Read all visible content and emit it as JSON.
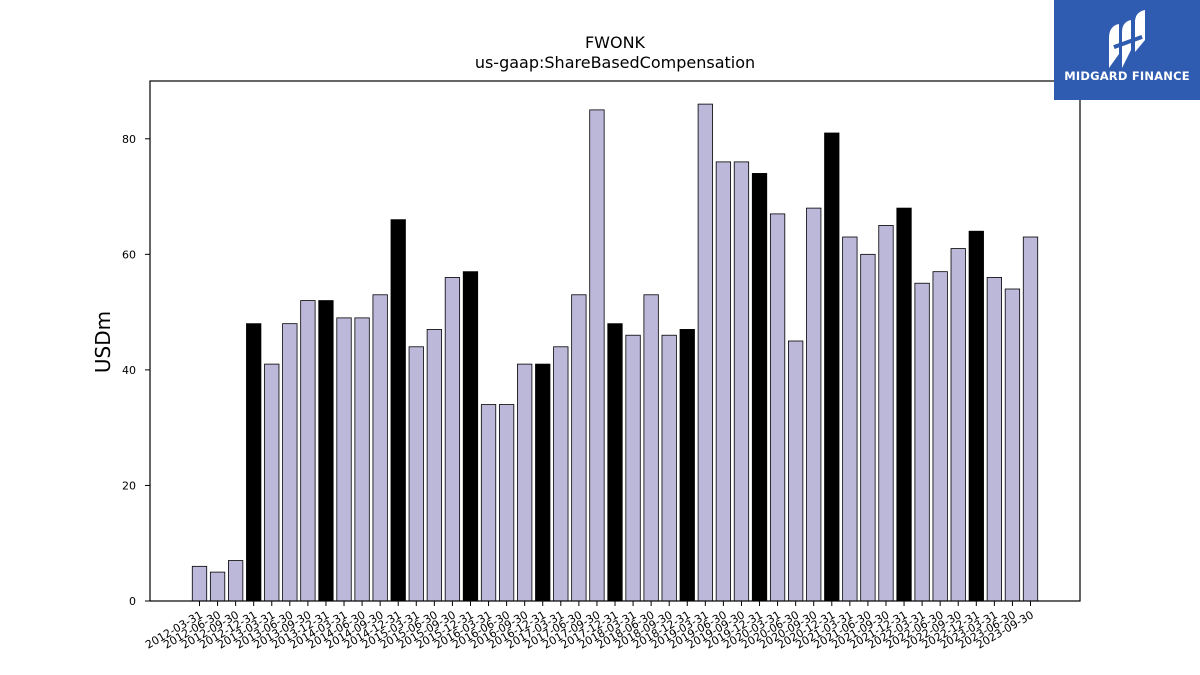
{
  "chart_data": {
    "type": "bar",
    "title": "FWONK",
    "subtitle": "us-gaap:ShareBasedCompensation",
    "xlabel": "",
    "ylabel": "USDm",
    "ylim": [
      0,
      90
    ],
    "yticks": [
      0,
      20,
      40,
      60,
      80
    ],
    "grid": false,
    "categories": [
      "2012-03-31",
      "2012-06-30",
      "2012-09-30",
      "2012-12-31",
      "2013-03-31",
      "2013-06-30",
      "2013-09-30",
      "2013-12-31",
      "2014-03-31",
      "2014-06-30",
      "2014-09-30",
      "2014-12-31",
      "2015-03-31",
      "2015-06-30",
      "2015-09-30",
      "2015-12-31",
      "2016-03-31",
      "2016-06-30",
      "2016-09-30",
      "2016-12-31",
      "2017-03-31",
      "2017-06-30",
      "2017-09-30",
      "2017-12-31",
      "2018-03-31",
      "2018-06-30",
      "2018-09-30",
      "2018-12-31",
      "2019-03-31",
      "2019-06-30",
      "2019-09-30",
      "2019-12-31",
      "2020-03-31",
      "2020-06-30",
      "2020-09-30",
      "2020-12-31",
      "2021-03-31",
      "2021-06-30",
      "2021-09-30",
      "2021-12-31",
      "2022-03-31",
      "2022-06-30",
      "2022-09-30",
      "2022-12-31",
      "2023-03-31",
      "2023-06-30",
      "2023-09-30"
    ],
    "values": [
      6,
      5,
      7,
      48,
      41,
      48,
      52,
      52,
      49,
      49,
      53,
      66,
      44,
      47,
      56,
      57,
      34,
      34,
      41,
      41,
      44,
      53,
      85,
      48,
      46,
      53,
      46,
      47,
      86,
      76,
      76,
      74,
      67,
      45,
      68,
      81,
      63,
      60,
      65,
      68,
      55,
      57,
      61,
      64,
      56,
      54,
      63
    ],
    "highlight": [
      false,
      false,
      false,
      true,
      false,
      false,
      false,
      true,
      false,
      false,
      false,
      true,
      false,
      false,
      false,
      true,
      false,
      false,
      false,
      true,
      false,
      false,
      false,
      true,
      false,
      false,
      false,
      true,
      false,
      false,
      false,
      true,
      false,
      false,
      false,
      true,
      false,
      false,
      false,
      true,
      false,
      false,
      false,
      true,
      false,
      false,
      false
    ],
    "colors": {
      "bar": "#bcb8d9",
      "highlight": "#000000",
      "edge": "#000000"
    }
  },
  "logo": {
    "text": "MIDGARD FINANCE",
    "background": "#2f5bb0"
  }
}
